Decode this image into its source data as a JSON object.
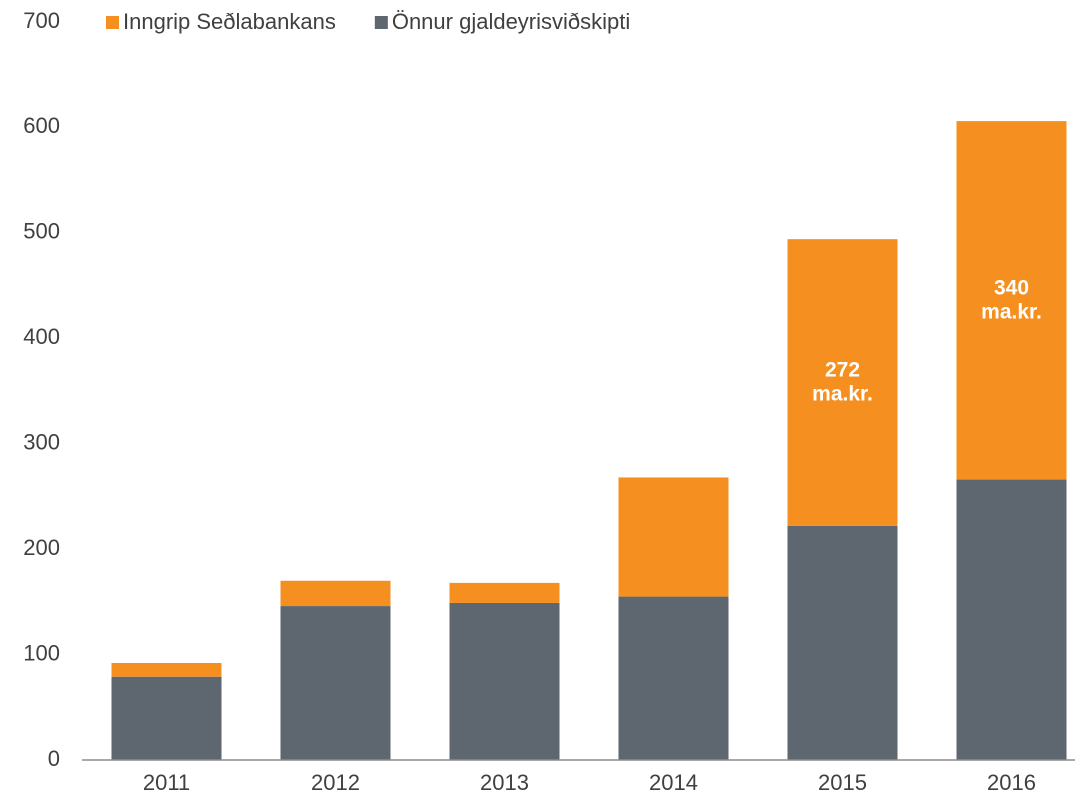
{
  "chart_data": {
    "type": "stacked_bar",
    "categories": [
      "2011",
      "2012",
      "2013",
      "2014",
      "2015",
      "2016"
    ],
    "series": [
      {
        "name": "Önnur gjaldeyrisviðskipti",
        "color": "#5e6670",
        "values": [
          79,
          146,
          149,
          155,
          222,
          266
        ]
      },
      {
        "name": "Inngrip Seðlabankans",
        "color": "#f58f20",
        "values": [
          13,
          24,
          19,
          113,
          272,
          340
        ],
        "value_labels": [
          null,
          null,
          null,
          null,
          "272 ma.kr.",
          "340 ma.kr."
        ]
      }
    ],
    "legend_order": [
      1,
      0
    ],
    "ylim": [
      0,
      700
    ],
    "yticks": [
      0,
      100,
      200,
      300,
      400,
      500,
      600,
      700
    ],
    "grid": false
  }
}
